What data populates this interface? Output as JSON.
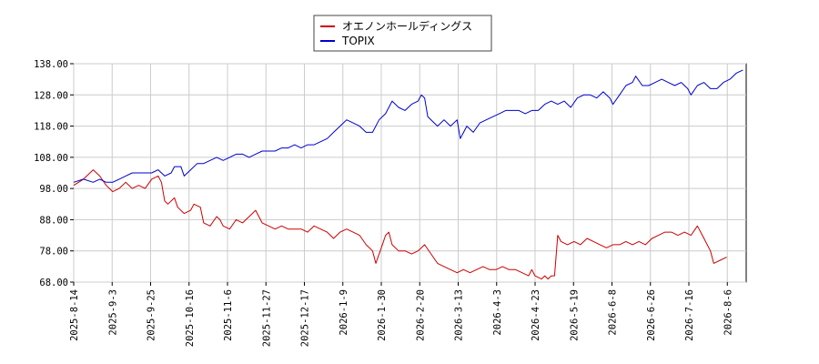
{
  "chart_data": {
    "type": "line",
    "ylim": [
      68,
      138
    ],
    "y_ticks": [
      "68.00",
      "78.00",
      "88.00",
      "98.00",
      "108.00",
      "118.00",
      "128.00",
      "138.00"
    ],
    "x_ticks": [
      "2025-8-14",
      "2025-9-3",
      "2025-9-25",
      "2025-10-16",
      "2025-11-6",
      "2025-11-27",
      "2025-12-17",
      "2026-1-9",
      "2026-1-30",
      "2026-2-20",
      "2026-3-13",
      "2026-4-3",
      "2026-4-23",
      "2026-5-19",
      "2026-6-8",
      "2026-6-26",
      "2026-7-16",
      "2026-8-6"
    ],
    "grid": true,
    "legend_position": "top-center",
    "series": [
      {
        "name": "オエノンホールディングス",
        "color": "#cc0000",
        "values": [
          [
            0,
            99
          ],
          [
            3,
            101
          ],
          [
            6,
            104
          ],
          [
            8,
            102
          ],
          [
            10,
            99
          ],
          [
            12,
            97
          ],
          [
            14,
            98
          ],
          [
            16,
            100
          ],
          [
            18,
            98
          ],
          [
            20,
            99
          ],
          [
            22,
            98
          ],
          [
            24,
            101
          ],
          [
            26,
            102
          ],
          [
            27,
            100
          ],
          [
            28,
            94
          ],
          [
            29,
            93
          ],
          [
            31,
            95
          ],
          [
            32,
            92
          ],
          [
            34,
            90
          ],
          [
            36,
            91
          ],
          [
            37,
            93
          ],
          [
            39,
            92
          ],
          [
            40,
            87
          ],
          [
            42,
            86
          ],
          [
            44,
            89
          ],
          [
            45,
            88
          ],
          [
            46,
            86
          ],
          [
            48,
            85
          ],
          [
            50,
            88
          ],
          [
            52,
            87
          ],
          [
            54,
            89
          ],
          [
            56,
            91
          ],
          [
            58,
            87
          ],
          [
            60,
            86
          ],
          [
            62,
            85
          ],
          [
            64,
            86
          ],
          [
            66,
            85
          ],
          [
            68,
            85
          ],
          [
            70,
            85
          ],
          [
            72,
            84
          ],
          [
            74,
            86
          ],
          [
            76,
            85
          ],
          [
            78,
            84
          ],
          [
            80,
            82
          ],
          [
            82,
            84
          ],
          [
            84,
            85
          ],
          [
            86,
            84
          ],
          [
            88,
            83
          ],
          [
            90,
            80
          ],
          [
            92,
            78
          ],
          [
            93,
            74
          ],
          [
            95,
            80
          ],
          [
            96,
            83
          ],
          [
            97,
            84
          ],
          [
            98,
            80
          ],
          [
            100,
            78
          ],
          [
            102,
            78
          ],
          [
            104,
            77
          ],
          [
            106,
            78
          ],
          [
            108,
            80
          ],
          [
            110,
            77
          ],
          [
            112,
            74
          ],
          [
            114,
            73
          ],
          [
            116,
            72
          ],
          [
            118,
            71
          ],
          [
            120,
            72
          ],
          [
            122,
            71
          ],
          [
            124,
            72
          ],
          [
            126,
            73
          ],
          [
            128,
            72
          ],
          [
            130,
            72
          ],
          [
            132,
            73
          ],
          [
            134,
            72
          ],
          [
            136,
            72
          ],
          [
            138,
            71
          ],
          [
            140,
            70
          ],
          [
            141,
            72
          ],
          [
            142,
            70
          ],
          [
            144,
            69
          ],
          [
            145,
            70
          ],
          [
            146,
            69
          ],
          [
            147,
            70
          ],
          [
            148,
            70
          ],
          [
            149,
            83
          ],
          [
            150,
            81
          ],
          [
            152,
            80
          ],
          [
            154,
            81
          ],
          [
            156,
            80
          ],
          [
            158,
            82
          ],
          [
            160,
            81
          ],
          [
            162,
            80
          ],
          [
            164,
            79
          ],
          [
            166,
            80
          ],
          [
            168,
            80
          ],
          [
            170,
            81
          ],
          [
            172,
            80
          ],
          [
            174,
            81
          ],
          [
            176,
            80
          ],
          [
            178,
            82
          ],
          [
            180,
            83
          ],
          [
            182,
            84
          ],
          [
            184,
            84
          ],
          [
            186,
            83
          ],
          [
            188,
            84
          ],
          [
            190,
            83
          ],
          [
            192,
            86
          ],
          [
            194,
            82
          ],
          [
            196,
            78
          ],
          [
            197,
            74
          ],
          [
            199,
            75
          ],
          [
            201,
            76
          ]
        ]
      },
      {
        "name": "TOPIX",
        "color": "#0000cc",
        "values": [
          [
            0,
            100
          ],
          [
            3,
            101
          ],
          [
            6,
            100
          ],
          [
            8,
            101
          ],
          [
            10,
            100
          ],
          [
            12,
            100
          ],
          [
            14,
            101
          ],
          [
            16,
            102
          ],
          [
            18,
            103
          ],
          [
            20,
            103
          ],
          [
            22,
            103
          ],
          [
            24,
            103
          ],
          [
            26,
            104
          ],
          [
            28,
            102
          ],
          [
            30,
            103
          ],
          [
            31,
            105
          ],
          [
            33,
            105
          ],
          [
            34,
            102
          ],
          [
            36,
            104
          ],
          [
            38,
            106
          ],
          [
            40,
            106
          ],
          [
            42,
            107
          ],
          [
            44,
            108
          ],
          [
            46,
            107
          ],
          [
            48,
            108
          ],
          [
            50,
            109
          ],
          [
            52,
            109
          ],
          [
            54,
            108
          ],
          [
            56,
            109
          ],
          [
            58,
            110
          ],
          [
            60,
            110
          ],
          [
            62,
            110
          ],
          [
            64,
            111
          ],
          [
            66,
            111
          ],
          [
            68,
            112
          ],
          [
            70,
            111
          ],
          [
            72,
            112
          ],
          [
            74,
            112
          ],
          [
            76,
            113
          ],
          [
            78,
            114
          ],
          [
            80,
            116
          ],
          [
            82,
            118
          ],
          [
            84,
            120
          ],
          [
            86,
            119
          ],
          [
            88,
            118
          ],
          [
            90,
            116
          ],
          [
            92,
            116
          ],
          [
            94,
            120
          ],
          [
            96,
            122
          ],
          [
            98,
            126
          ],
          [
            100,
            124
          ],
          [
            102,
            123
          ],
          [
            104,
            125
          ],
          [
            106,
            126
          ],
          [
            107,
            128
          ],
          [
            108,
            127
          ],
          [
            109,
            121
          ],
          [
            110,
            120
          ],
          [
            112,
            118
          ],
          [
            114,
            120
          ],
          [
            116,
            118
          ],
          [
            118,
            120
          ],
          [
            119,
            114
          ],
          [
            121,
            118
          ],
          [
            123,
            116
          ],
          [
            125,
            119
          ],
          [
            127,
            120
          ],
          [
            129,
            121
          ],
          [
            131,
            122
          ],
          [
            133,
            123
          ],
          [
            135,
            123
          ],
          [
            137,
            123
          ],
          [
            139,
            122
          ],
          [
            141,
            123
          ],
          [
            143,
            123
          ],
          [
            145,
            125
          ],
          [
            147,
            126
          ],
          [
            149,
            125
          ],
          [
            151,
            126
          ],
          [
            153,
            124
          ],
          [
            155,
            127
          ],
          [
            157,
            128
          ],
          [
            159,
            128
          ],
          [
            161,
            127
          ],
          [
            163,
            129
          ],
          [
            165,
            127
          ],
          [
            166,
            125
          ],
          [
            168,
            128
          ],
          [
            170,
            131
          ],
          [
            172,
            132
          ],
          [
            173,
            134
          ],
          [
            175,
            131
          ],
          [
            177,
            131
          ],
          [
            179,
            132
          ],
          [
            181,
            133
          ],
          [
            183,
            132
          ],
          [
            185,
            131
          ],
          [
            187,
            132
          ],
          [
            189,
            130
          ],
          [
            190,
            128
          ],
          [
            192,
            131
          ],
          [
            194,
            132
          ],
          [
            196,
            130
          ],
          [
            198,
            130
          ],
          [
            200,
            132
          ],
          [
            202,
            133
          ],
          [
            204,
            135
          ],
          [
            206,
            136
          ]
        ]
      }
    ]
  }
}
